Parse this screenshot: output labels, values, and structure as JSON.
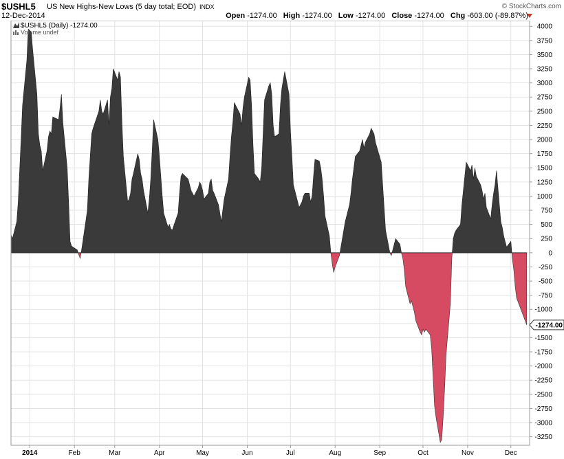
{
  "header": {
    "symbol": "$USHL5",
    "title": "US New Highs-New Lows (5 day total; EOD)",
    "exchange": "INDX",
    "date": "12-Dec-2014",
    "brand": "© StockCharts.com",
    "open_label": "Open",
    "open_value": "-1274.00",
    "high_label": "High",
    "high_value": "-1274.00",
    "low_label": "Low",
    "low_value": "-1274.00",
    "close_label": "Close",
    "close_value": "-1274.00",
    "chg_label": "Chg",
    "chg_value": "-603.00 (-89.87%)"
  },
  "legend": {
    "series_label": "$USHL5 (Daily) -1274.00",
    "volume_label": "Volume undef"
  },
  "colors": {
    "positive_fill": "#3a3a3a",
    "negative_fill": "#d64a62",
    "grid": "#e3e3e3",
    "axis": "#999999"
  },
  "chart_data": {
    "type": "area",
    "title": "$USHL5 (Daily) -1274.00",
    "ylim": [
      -3400,
      4100
    ],
    "yticks": [
      4000,
      3750,
      3500,
      3250,
      3000,
      2750,
      2500,
      2250,
      2000,
      1750,
      1500,
      1250,
      1000,
      750,
      500,
      250,
      0,
      -250,
      -500,
      -750,
      -1000,
      -1250,
      -1500,
      -1750,
      -2000,
      -2250,
      -2500,
      -2750,
      -3000,
      -3250
    ],
    "month_ticks": [
      {
        "label": "2014",
        "date": "2014-01-01"
      },
      {
        "label": "Feb",
        "date": "2014-02-01"
      },
      {
        "label": "Mar",
        "date": "2014-03-01"
      },
      {
        "label": "Apr",
        "date": "2014-04-01"
      },
      {
        "label": "May",
        "date": "2014-05-01"
      },
      {
        "label": "Jun",
        "date": "2014-06-01"
      },
      {
        "label": "Jul",
        "date": "2014-07-01"
      },
      {
        "label": "Aug",
        "date": "2014-08-01"
      },
      {
        "label": "Sep",
        "date": "2014-09-01"
      },
      {
        "label": "Oct",
        "date": "2014-10-01"
      },
      {
        "label": "Nov",
        "date": "2014-11-01"
      },
      {
        "label": "Dec",
        "date": "2014-12-01"
      }
    ],
    "last_value_label": "-1274.00",
    "last_value": -1274,
    "x_range": [
      "2013-12-19",
      "2014-12-14"
    ],
    "series": [
      {
        "points": [
          [
            "2013-12-19",
            320
          ],
          [
            "2013-12-20",
            250
          ],
          [
            "2013-12-23",
            550
          ],
          [
            "2013-12-24",
            900
          ],
          [
            "2013-12-26",
            2000
          ],
          [
            "2013-12-27",
            2600
          ],
          [
            "2013-12-30",
            3400
          ],
          [
            "2013-12-31",
            3950
          ],
          [
            "2014-01-02",
            3900
          ],
          [
            "2014-01-03",
            3600
          ],
          [
            "2014-01-06",
            2800
          ],
          [
            "2014-01-07",
            2100
          ],
          [
            "2014-01-08",
            1900
          ],
          [
            "2014-01-09",
            1800
          ],
          [
            "2014-01-10",
            1450
          ],
          [
            "2014-01-13",
            1800
          ],
          [
            "2014-01-14",
            2050
          ],
          [
            "2014-01-15",
            2150
          ],
          [
            "2014-01-16",
            2100
          ],
          [
            "2014-01-17",
            2400
          ],
          [
            "2014-01-21",
            2350
          ],
          [
            "2014-01-22",
            2550
          ],
          [
            "2014-01-23",
            2800
          ],
          [
            "2014-01-24",
            2300
          ],
          [
            "2014-01-27",
            1500
          ],
          [
            "2014-01-28",
            900
          ],
          [
            "2014-01-29",
            200
          ],
          [
            "2014-01-30",
            120
          ],
          [
            "2014-01-31",
            100
          ],
          [
            "2014-02-03",
            50
          ],
          [
            "2014-02-04",
            -30
          ],
          [
            "2014-02-05",
            -100
          ],
          [
            "2014-02-06",
            50
          ],
          [
            "2014-02-07",
            220
          ],
          [
            "2014-02-10",
            750
          ],
          [
            "2014-02-11",
            1300
          ],
          [
            "2014-02-12",
            1700
          ],
          [
            "2014-02-13",
            2100
          ],
          [
            "2014-02-14",
            2200
          ],
          [
            "2014-02-18",
            2500
          ],
          [
            "2014-02-19",
            2700
          ],
          [
            "2014-02-20",
            2500
          ],
          [
            "2014-02-21",
            2450
          ],
          [
            "2014-02-24",
            2700
          ],
          [
            "2014-02-25",
            2250
          ],
          [
            "2014-02-26",
            2750
          ],
          [
            "2014-02-27",
            2900
          ],
          [
            "2014-02-28",
            3250
          ],
          [
            "2014-03-03",
            3050
          ],
          [
            "2014-03-04",
            3200
          ],
          [
            "2014-03-05",
            3100
          ],
          [
            "2014-03-06",
            2300
          ],
          [
            "2014-03-07",
            1700
          ],
          [
            "2014-03-10",
            900
          ],
          [
            "2014-03-11",
            950
          ],
          [
            "2014-03-12",
            1050
          ],
          [
            "2014-03-13",
            1300
          ],
          [
            "2014-03-14",
            1400
          ],
          [
            "2014-03-17",
            1750
          ],
          [
            "2014-03-18",
            1650
          ],
          [
            "2014-03-19",
            1400
          ],
          [
            "2014-03-20",
            1300
          ],
          [
            "2014-03-21",
            1100
          ],
          [
            "2014-03-24",
            700
          ],
          [
            "2014-03-25",
            950
          ],
          [
            "2014-03-26",
            1300
          ],
          [
            "2014-03-27",
            1800
          ],
          [
            "2014-03-28",
            2350
          ],
          [
            "2014-03-31",
            2000
          ],
          [
            "2014-04-01",
            1700
          ],
          [
            "2014-04-02",
            1350
          ],
          [
            "2014-04-03",
            1000
          ],
          [
            "2014-04-04",
            700
          ],
          [
            "2014-04-07",
            450
          ],
          [
            "2014-04-08",
            500
          ],
          [
            "2014-04-09",
            420
          ],
          [
            "2014-04-10",
            400
          ],
          [
            "2014-04-11",
            480
          ],
          [
            "2014-04-14",
            700
          ],
          [
            "2014-04-15",
            1050
          ],
          [
            "2014-04-16",
            1350
          ],
          [
            "2014-04-17",
            1400
          ],
          [
            "2014-04-21",
            1300
          ],
          [
            "2014-04-22",
            1200
          ],
          [
            "2014-04-23",
            1100
          ],
          [
            "2014-04-24",
            1050
          ],
          [
            "2014-04-25",
            1000
          ],
          [
            "2014-04-28",
            1150
          ],
          [
            "2014-04-29",
            1250
          ],
          [
            "2014-04-30",
            1200
          ],
          [
            "2014-05-01",
            1100
          ],
          [
            "2014-05-02",
            950
          ],
          [
            "2014-05-05",
            1050
          ],
          [
            "2014-05-06",
            1250
          ],
          [
            "2014-05-07",
            1300
          ],
          [
            "2014-05-08",
            1100
          ],
          [
            "2014-05-09",
            1050
          ],
          [
            "2014-05-12",
            850
          ],
          [
            "2014-05-13",
            700
          ],
          [
            "2014-05-14",
            550
          ],
          [
            "2014-05-15",
            750
          ],
          [
            "2014-05-16",
            950
          ],
          [
            "2014-05-19",
            1300
          ],
          [
            "2014-05-20",
            1700
          ],
          [
            "2014-05-21",
            2050
          ],
          [
            "2014-05-22",
            2300
          ],
          [
            "2014-05-23",
            2650
          ],
          [
            "2014-05-27",
            2450
          ],
          [
            "2014-05-28",
            2250
          ],
          [
            "2014-05-29",
            2550
          ],
          [
            "2014-05-30",
            2750
          ],
          [
            "2014-06-02",
            3100
          ],
          [
            "2014-06-03",
            3050
          ],
          [
            "2014-06-04",
            2600
          ],
          [
            "2014-06-05",
            1900
          ],
          [
            "2014-06-06",
            1400
          ],
          [
            "2014-06-09",
            1300
          ],
          [
            "2014-06-10",
            1250
          ],
          [
            "2014-06-11",
            1500
          ],
          [
            "2014-06-12",
            2100
          ],
          [
            "2014-06-13",
            2700
          ],
          [
            "2014-06-16",
            2950
          ],
          [
            "2014-06-17",
            3000
          ],
          [
            "2014-06-18",
            2800
          ],
          [
            "2014-06-19",
            2250
          ],
          [
            "2014-06-20",
            2050
          ],
          [
            "2014-06-23",
            2100
          ],
          [
            "2014-06-24",
            2600
          ],
          [
            "2014-06-25",
            2900
          ],
          [
            "2014-06-26",
            3050
          ],
          [
            "2014-06-27",
            3200
          ],
          [
            "2014-06-30",
            2800
          ],
          [
            "2014-07-01",
            2150
          ],
          [
            "2014-07-02",
            1700
          ],
          [
            "2014-07-03",
            1200
          ],
          [
            "2014-07-07",
            800
          ],
          [
            "2014-07-08",
            850
          ],
          [
            "2014-07-09",
            900
          ],
          [
            "2014-07-10",
            1000
          ],
          [
            "2014-07-11",
            1050
          ],
          [
            "2014-07-14",
            1050
          ],
          [
            "2014-07-15",
            900
          ],
          [
            "2014-07-16",
            1000
          ],
          [
            "2014-07-17",
            1350
          ],
          [
            "2014-07-18",
            1650
          ],
          [
            "2014-07-21",
            1620
          ],
          [
            "2014-07-22",
            1500
          ],
          [
            "2014-07-23",
            1300
          ],
          [
            "2014-07-24",
            1000
          ],
          [
            "2014-07-25",
            650
          ],
          [
            "2014-07-28",
            300
          ],
          [
            "2014-07-29",
            0
          ],
          [
            "2014-07-30",
            -200
          ],
          [
            "2014-07-31",
            -350
          ],
          [
            "2014-08-01",
            -250
          ],
          [
            "2014-08-04",
            -50
          ],
          [
            "2014-08-05",
            100
          ],
          [
            "2014-08-06",
            250
          ],
          [
            "2014-08-07",
            400
          ],
          [
            "2014-08-08",
            550
          ],
          [
            "2014-08-11",
            850
          ],
          [
            "2014-08-12",
            1050
          ],
          [
            "2014-08-13",
            1300
          ],
          [
            "2014-08-14",
            1500
          ],
          [
            "2014-08-15",
            1700
          ],
          [
            "2014-08-18",
            1800
          ],
          [
            "2014-08-19",
            1900
          ],
          [
            "2014-08-20",
            2000
          ],
          [
            "2014-08-21",
            1850
          ],
          [
            "2014-08-22",
            1950
          ],
          [
            "2014-08-25",
            2100
          ],
          [
            "2014-08-26",
            2200
          ],
          [
            "2014-08-27",
            2150
          ],
          [
            "2014-08-28",
            2100
          ],
          [
            "2014-08-29",
            1950
          ],
          [
            "2014-09-02",
            1600
          ],
          [
            "2014-09-03",
            1200
          ],
          [
            "2014-09-04",
            800
          ],
          [
            "2014-09-05",
            400
          ],
          [
            "2014-09-08",
            0
          ],
          [
            "2014-09-09",
            -50
          ],
          [
            "2014-09-10",
            50
          ],
          [
            "2014-09-11",
            150
          ],
          [
            "2014-09-12",
            250
          ],
          [
            "2014-09-15",
            150
          ],
          [
            "2014-09-16",
            0
          ],
          [
            "2014-09-17",
            -100
          ],
          [
            "2014-09-18",
            -300
          ],
          [
            "2014-09-19",
            -600
          ],
          [
            "2014-09-22",
            -900
          ],
          [
            "2014-09-23",
            -850
          ],
          [
            "2014-09-24",
            -950
          ],
          [
            "2014-09-25",
            -1050
          ],
          [
            "2014-09-26",
            -1200
          ],
          [
            "2014-09-29",
            -1400
          ],
          [
            "2014-09-30",
            -1450
          ],
          [
            "2014-10-01",
            -1350
          ],
          [
            "2014-10-02",
            -1400
          ],
          [
            "2014-10-03",
            -1350
          ],
          [
            "2014-10-06",
            -1450
          ],
          [
            "2014-10-07",
            -1700
          ],
          [
            "2014-10-08",
            -2200
          ],
          [
            "2014-10-09",
            -2700
          ],
          [
            "2014-10-10",
            -2900
          ],
          [
            "2014-10-13",
            -3350
          ],
          [
            "2014-10-14",
            -3300
          ],
          [
            "2014-10-15",
            -2900
          ],
          [
            "2014-10-16",
            -2400
          ],
          [
            "2014-10-17",
            -1800
          ],
          [
            "2014-10-20",
            -900
          ],
          [
            "2014-10-21",
            -100
          ],
          [
            "2014-10-22",
            250
          ],
          [
            "2014-10-23",
            350
          ],
          [
            "2014-10-24",
            400
          ],
          [
            "2014-10-27",
            500
          ],
          [
            "2014-10-28",
            850
          ],
          [
            "2014-10-29",
            1100
          ],
          [
            "2014-10-30",
            1350
          ],
          [
            "2014-10-31",
            1600
          ],
          [
            "2014-11-03",
            1450
          ],
          [
            "2014-11-04",
            1550
          ],
          [
            "2014-11-05",
            1300
          ],
          [
            "2014-11-06",
            1500
          ],
          [
            "2014-11-07",
            1350
          ],
          [
            "2014-11-10",
            1200
          ],
          [
            "2014-11-11",
            1100
          ],
          [
            "2014-11-12",
            950
          ],
          [
            "2014-11-13",
            1050
          ],
          [
            "2014-11-14",
            800
          ],
          [
            "2014-11-17",
            600
          ],
          [
            "2014-11-18",
            850
          ],
          [
            "2014-11-19",
            1050
          ],
          [
            "2014-11-20",
            1200
          ],
          [
            "2014-11-21",
            1450
          ],
          [
            "2014-11-24",
            550
          ],
          [
            "2014-11-25",
            450
          ],
          [
            "2014-11-26",
            300
          ],
          [
            "2014-11-28",
            100
          ],
          [
            "2014-12-01",
            200
          ],
          [
            "2014-12-02",
            -100
          ],
          [
            "2014-12-03",
            -300
          ],
          [
            "2014-12-04",
            -600
          ],
          [
            "2014-12-05",
            -800
          ],
          [
            "2014-12-12",
            -1274
          ]
        ]
      }
    ]
  }
}
